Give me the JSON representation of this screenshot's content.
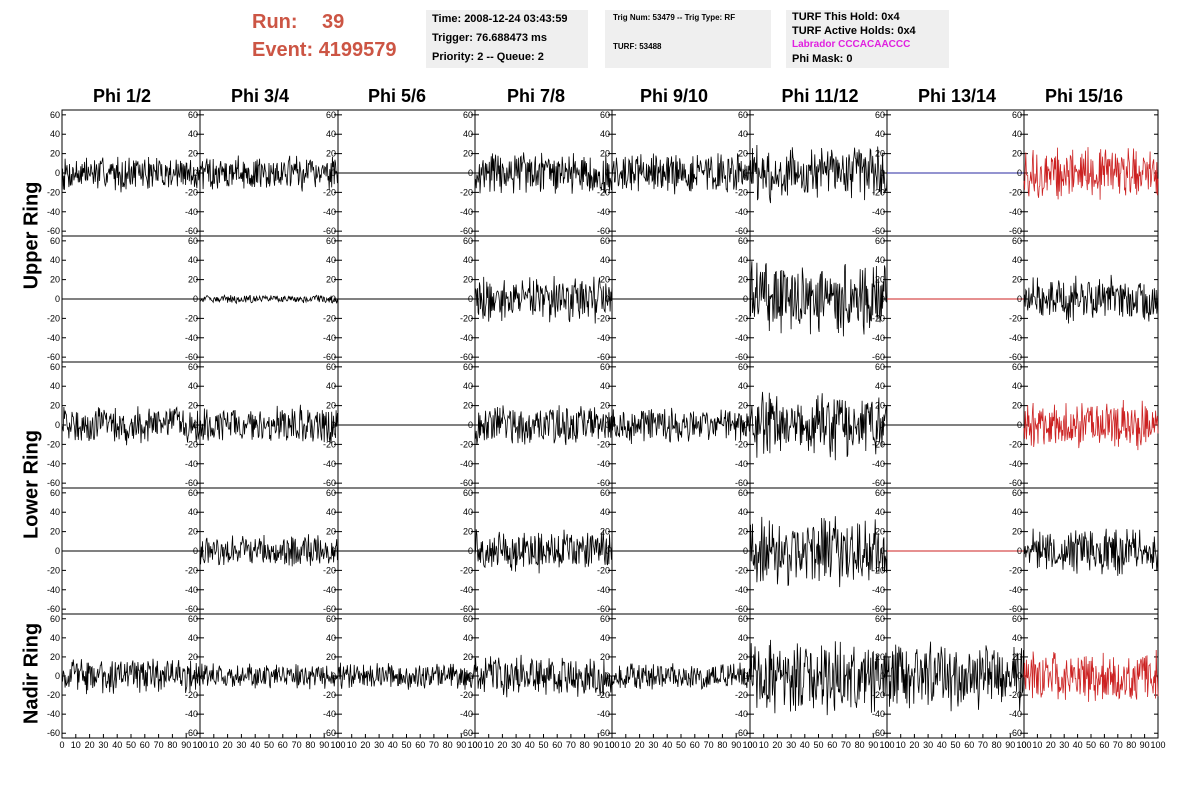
{
  "header": {
    "run_label": "Run:",
    "run_value": "39",
    "event_label": "Event:",
    "event_value": "4199579"
  },
  "info_box1": {
    "time": "Time: 2008-12-24 03:43:59",
    "trigger": "Trigger: 76.688473 ms",
    "priority": "Priority: 2 -- Queue: 2"
  },
  "info_box2": {
    "trig": "Trig Num: 53479 -- Trig Type: RF",
    "turf": "TURF: 53488"
  },
  "info_box3": {
    "this_hold": "TURF This Hold: 0x4",
    "active_holds": "TURF Active Holds: 0x4",
    "labrador": "Labrador CCCACAACCC",
    "phi_mask": "Phi Mask: 0"
  },
  "columns": [
    "Phi 1/2",
    "Phi 3/4",
    "Phi 5/6",
    "Phi 7/8",
    "Phi 9/10",
    "Phi 11/12",
    "Phi 13/14",
    "Phi 15/16"
  ],
  "row_groups": [
    {
      "label": "Upper Ring",
      "rows": [
        0,
        1
      ]
    },
    {
      "label": "Lower Ring",
      "rows": [
        2,
        3
      ]
    },
    {
      "label": "Nadir Ring",
      "rows": [
        4
      ]
    }
  ],
  "colors": {
    "trace": "#000000",
    "red_trace": "#cc2222",
    "blue_line": "#2a2aa0",
    "red_line": "#cc2222",
    "header_red": "#cc5544",
    "labrador": "#e020e0"
  },
  "chart_data": {
    "type": "line",
    "xlim": [
      0,
      100
    ],
    "ylim": [
      -65,
      65
    ],
    "y_ticks": [
      60,
      40,
      20,
      0,
      -20,
      -40,
      -60
    ],
    "x_ticks": [
      0,
      10,
      20,
      30,
      40,
      50,
      60,
      70,
      80,
      90,
      100
    ],
    "panels": [
      [
        {
          "amp": 17,
          "color": "trace"
        },
        {
          "amp": 17,
          "color": "trace"
        },
        {
          "amp": 0,
          "color": "trace"
        },
        {
          "amp": 20,
          "color": "trace"
        },
        {
          "amp": 20,
          "color": "trace"
        },
        {
          "amp": 27,
          "color": "trace"
        },
        {
          "amp": 0,
          "color": "blue_line"
        },
        {
          "amp": 24,
          "color": "red_trace"
        }
      ],
      [
        {
          "amp": 0,
          "color": "trace"
        },
        {
          "amp": 4,
          "color": "trace"
        },
        {
          "amp": 0,
          "color": "trace"
        },
        {
          "amp": 22,
          "color": "trace"
        },
        {
          "amp": 0,
          "color": "trace"
        },
        {
          "amp": 35,
          "color": "trace"
        },
        {
          "amp": 0,
          "color": "red_line"
        },
        {
          "amp": 22,
          "color": "trace"
        }
      ],
      [
        {
          "amp": 18,
          "color": "trace"
        },
        {
          "amp": 18,
          "color": "trace"
        },
        {
          "amp": 0,
          "color": "trace"
        },
        {
          "amp": 20,
          "color": "trace"
        },
        {
          "amp": 17,
          "color": "trace"
        },
        {
          "amp": 32,
          "color": "trace"
        },
        {
          "amp": 0,
          "color": "trace"
        },
        {
          "amp": 22,
          "color": "red_trace"
        }
      ],
      [
        {
          "amp": 0,
          "color": "trace"
        },
        {
          "amp": 15,
          "color": "trace"
        },
        {
          "amp": 0,
          "color": "trace"
        },
        {
          "amp": 20,
          "color": "trace"
        },
        {
          "amp": 0,
          "color": "trace"
        },
        {
          "amp": 32,
          "color": "trace"
        },
        {
          "amp": 0,
          "color": "red_line"
        },
        {
          "amp": 22,
          "color": "trace"
        }
      ],
      [
        {
          "amp": 17,
          "color": "trace"
        },
        {
          "amp": 12,
          "color": "trace"
        },
        {
          "amp": 13,
          "color": "trace"
        },
        {
          "amp": 20,
          "color": "trace"
        },
        {
          "amp": 13,
          "color": "trace"
        },
        {
          "amp": 35,
          "color": "trace"
        },
        {
          "amp": 32,
          "color": "trace"
        },
        {
          "amp": 24,
          "color": "red_trace"
        }
      ]
    ]
  }
}
